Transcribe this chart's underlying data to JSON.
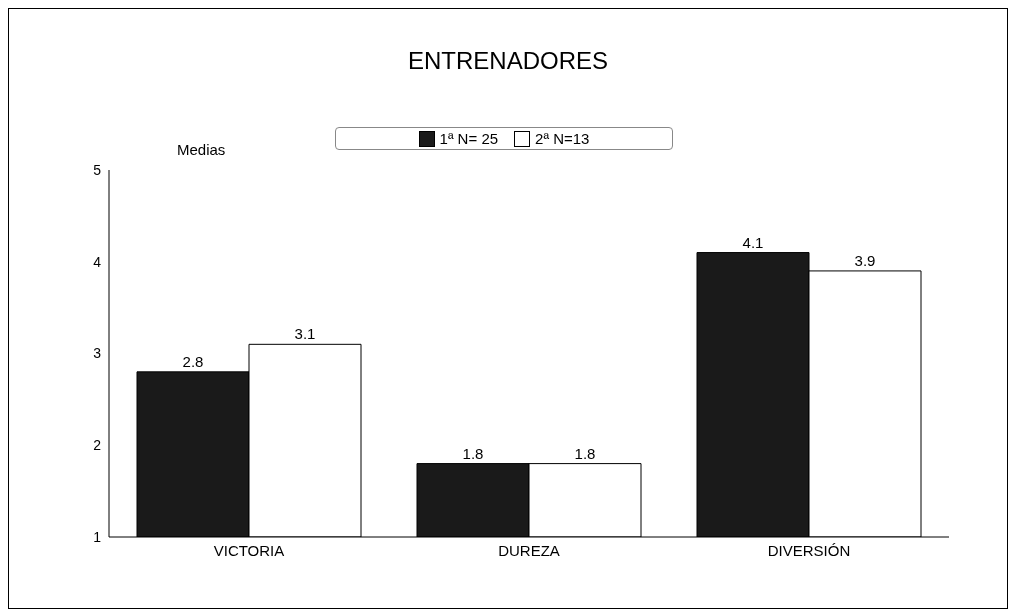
{
  "chart_data": {
    "type": "bar",
    "title": "ENTRENADORES",
    "ylabel": "Medias",
    "categories": [
      "VICTORIA",
      "DUREZA",
      "DIVERSIÓN"
    ],
    "series": [
      {
        "name": "1ª N= 25",
        "color": "#1a1a1a",
        "values": [
          2.8,
          1.8,
          4.1
        ]
      },
      {
        "name": "2ª N=13",
        "color": "#ffffff",
        "values": [
          3.1,
          1.8,
          3.9
        ]
      }
    ],
    "ylim": [
      1,
      5
    ],
    "yticks": [
      1,
      2,
      3,
      4,
      5
    ],
    "data_labels": true,
    "legend": "top",
    "grid": false
  }
}
